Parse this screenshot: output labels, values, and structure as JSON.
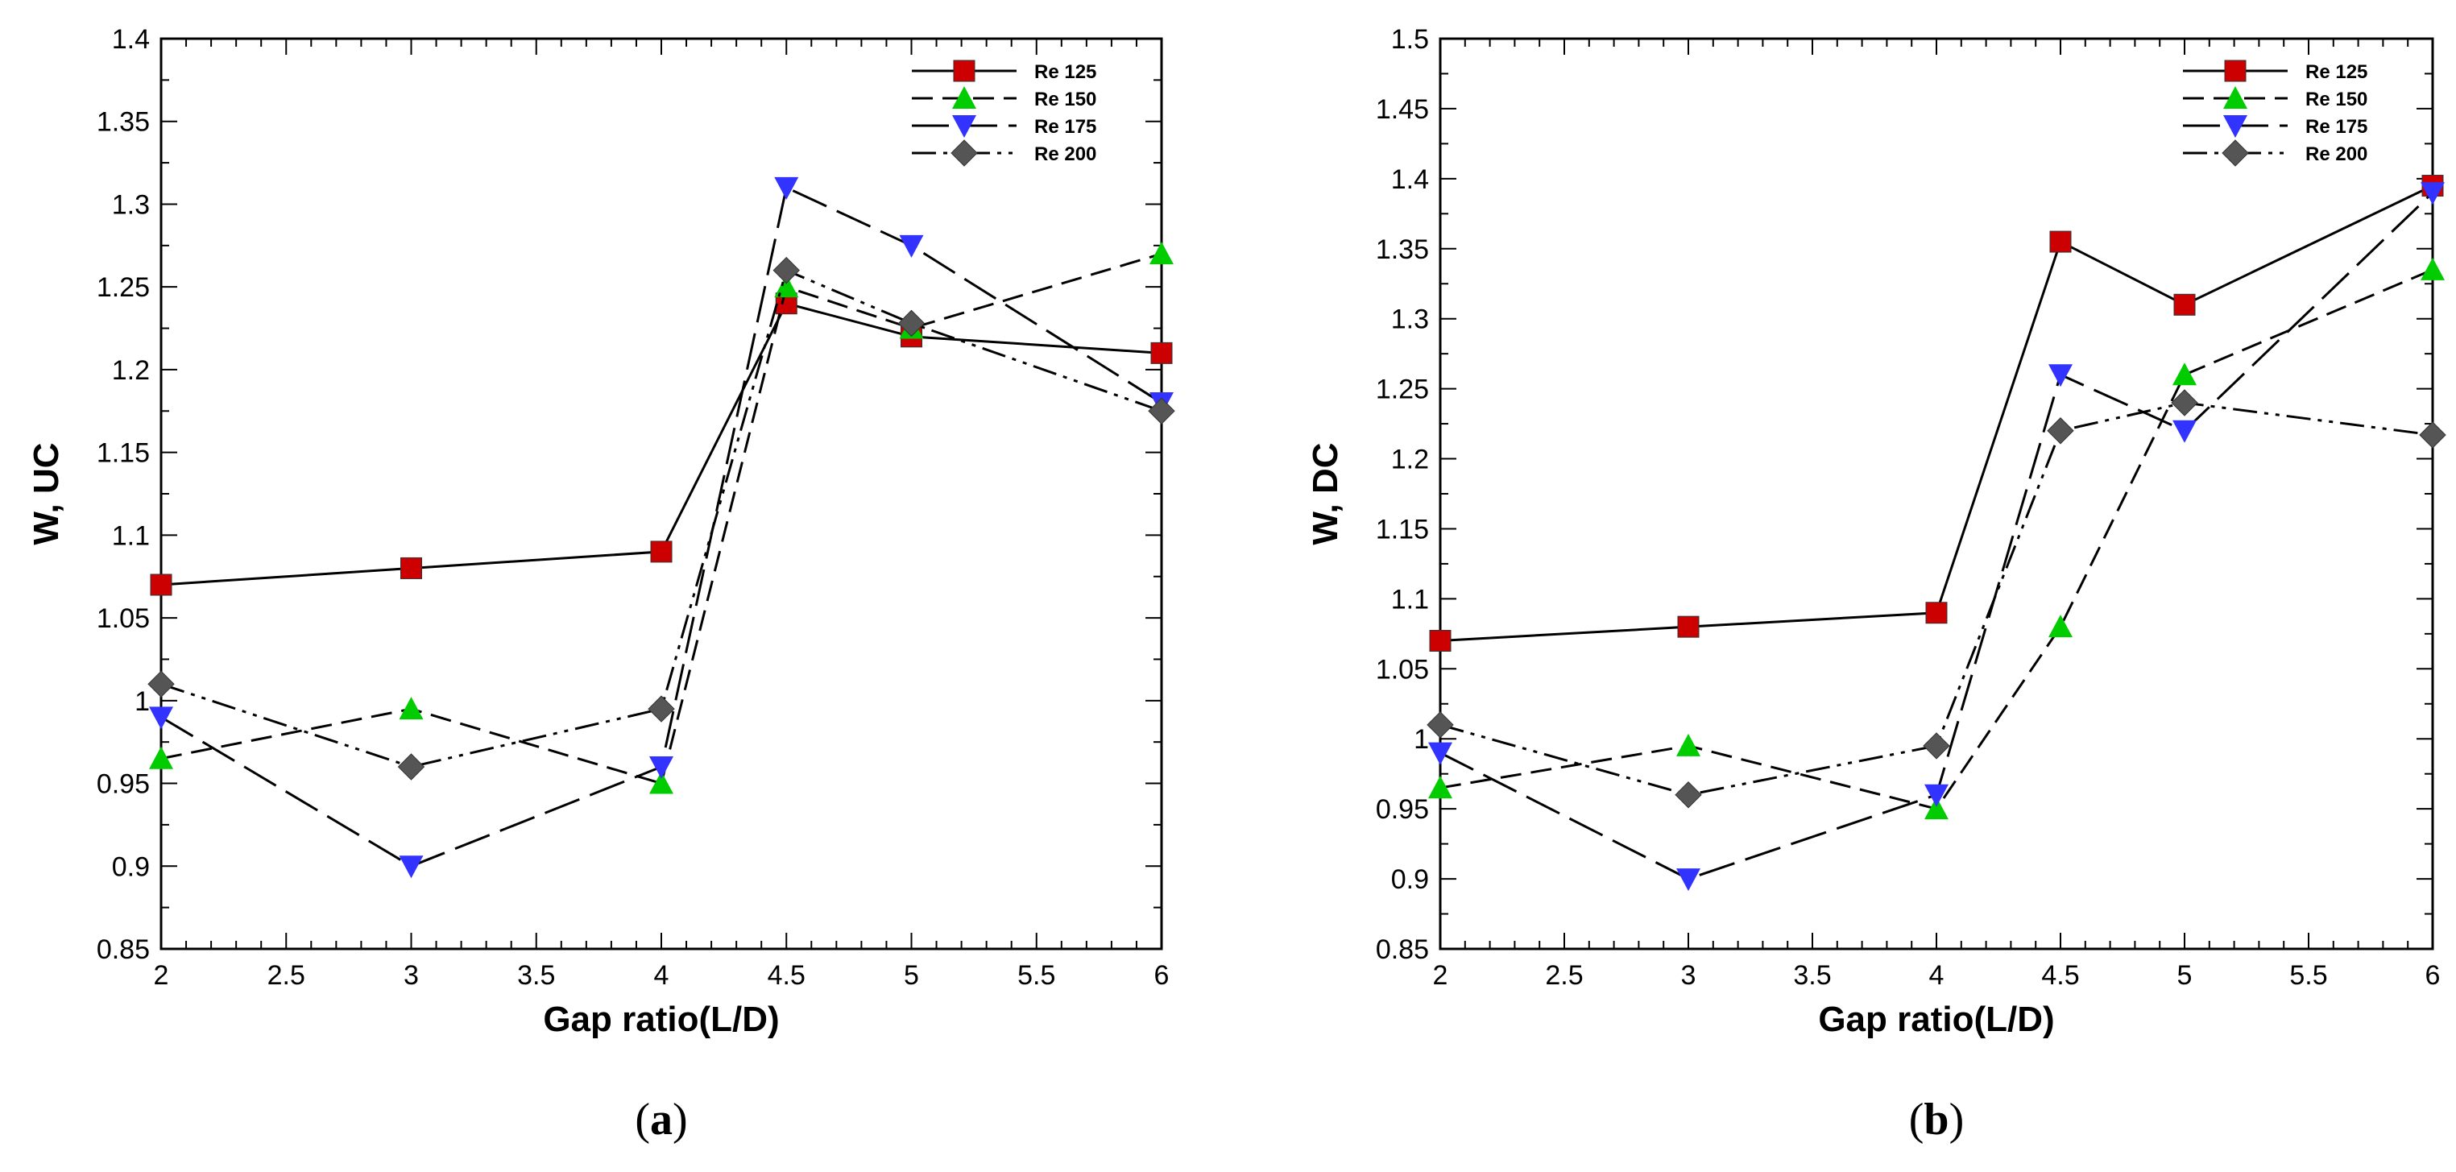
{
  "chart_data": [
    {
      "type": "line",
      "panel_label": "a",
      "xlabel": "Gap ratio(L/D)",
      "ylabel": "W, UC",
      "xlim": [
        2,
        6
      ],
      "ylim": [
        0.85,
        1.4
      ],
      "xticks": [
        "2",
        "2.5",
        "3",
        "3.5",
        "4",
        "4.5",
        "5",
        "5.5",
        "6"
      ],
      "yticks": [
        "0.85",
        "0.9",
        "0.95",
        "1",
        "1.05",
        "1.1",
        "1.15",
        "1.2",
        "1.25",
        "1.3",
        "1.35",
        "1.4"
      ],
      "legend_position": "top-right",
      "x": [
        2,
        3,
        4,
        4.5,
        5,
        6
      ],
      "series": [
        {
          "name": "Re 125",
          "values": [
            1.07,
            1.08,
            1.09,
            1.24,
            1.22,
            1.21
          ],
          "color": "#cc0000",
          "marker": "square",
          "dash": "solid"
        },
        {
          "name": "Re 150",
          "values": [
            0.965,
            0.995,
            0.95,
            1.25,
            1.225,
            1.27
          ],
          "color": "#00cc00",
          "marker": "triangle-up",
          "dash": "dashed"
        },
        {
          "name": "Re 175",
          "values": [
            0.99,
            0.9,
            0.96,
            1.31,
            1.275,
            1.18
          ],
          "color": "#3333ff",
          "marker": "triangle-down",
          "dash": "longdash"
        },
        {
          "name": "Re 200",
          "values": [
            1.01,
            0.96,
            0.995,
            1.26,
            1.228,
            1.175
          ],
          "color": "#555555",
          "marker": "diamond",
          "dash": "dashdotdot"
        }
      ]
    },
    {
      "type": "line",
      "panel_label": "b",
      "xlabel": "Gap ratio(L/D)",
      "ylabel": "W, DC",
      "xlim": [
        2,
        6
      ],
      "ylim": [
        0.85,
        1.5
      ],
      "xticks": [
        "2",
        "2.5",
        "3",
        "3.5",
        "4",
        "4.5",
        "5",
        "5.5",
        "6"
      ],
      "yticks": [
        "0.85",
        "0.9",
        "0.95",
        "1",
        "1.05",
        "1.1",
        "1.15",
        "1.2",
        "1.25",
        "1.3",
        "1.35",
        "1.4",
        "1.45",
        "1.5"
      ],
      "legend_position": "top-right",
      "x": [
        2,
        3,
        4,
        4.5,
        5,
        6
      ],
      "series": [
        {
          "name": "Re 125",
          "values": [
            1.07,
            1.08,
            1.09,
            1.355,
            1.31,
            1.395
          ],
          "color": "#cc0000",
          "marker": "square",
          "dash": "solid"
        },
        {
          "name": "Re 150",
          "values": [
            0.965,
            0.995,
            0.95,
            1.08,
            1.26,
            1.335
          ],
          "color": "#00cc00",
          "marker": "triangle-up",
          "dash": "dashed"
        },
        {
          "name": "Re 175",
          "values": [
            0.99,
            0.9,
            0.96,
            1.26,
            1.22,
            1.39
          ],
          "color": "#3333ff",
          "marker": "triangle-down",
          "dash": "longdash"
        },
        {
          "name": "Re 200",
          "values": [
            1.01,
            0.96,
            0.995,
            1.22,
            1.24,
            1.217
          ],
          "color": "#555555",
          "marker": "diamond",
          "dash": "dashdotdot"
        }
      ]
    }
  ]
}
